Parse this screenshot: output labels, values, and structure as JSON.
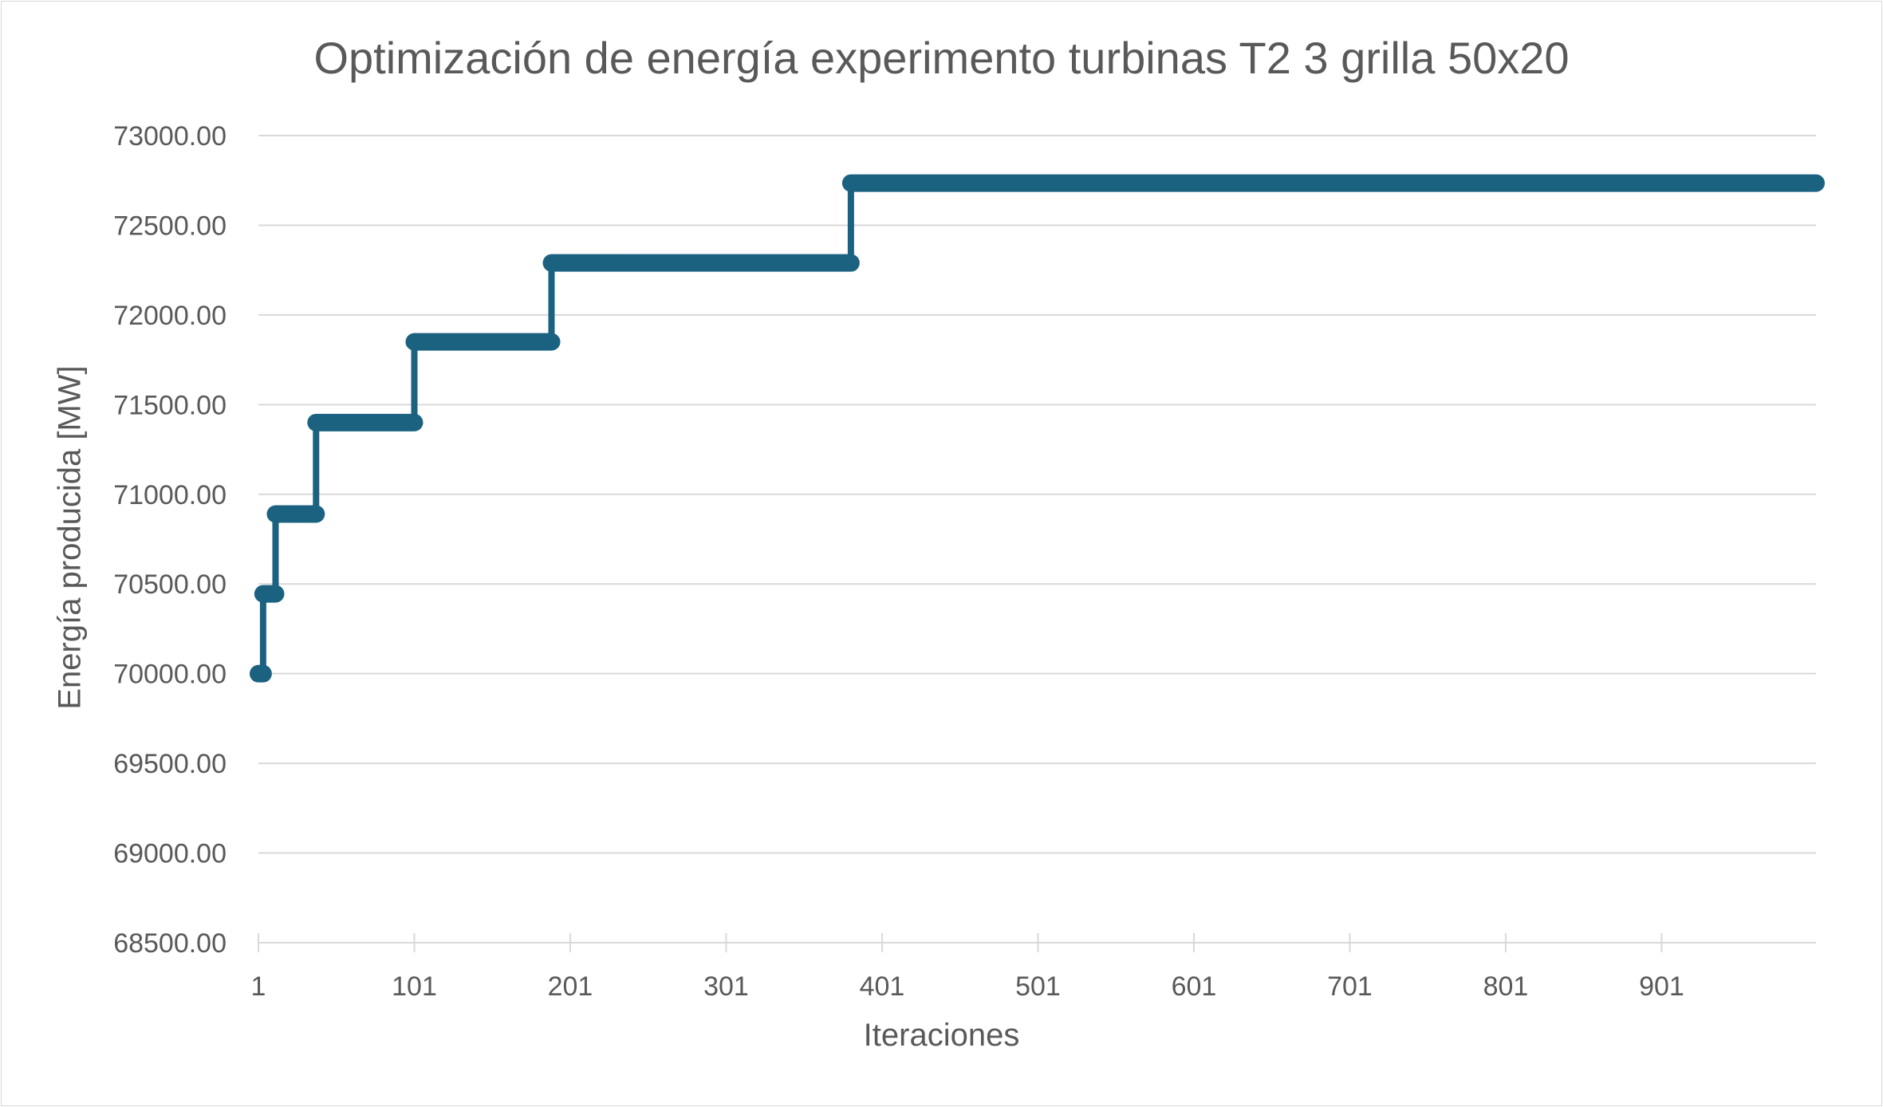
{
  "chart_data": {
    "type": "line",
    "title": "Optimización de energía experimento turbinas T2 3 grilla 50x20",
    "xlabel": "Iteraciones",
    "ylabel": "Energía producida [MW]",
    "ylim": [
      68500,
      73000
    ],
    "xlim": [
      1,
      1000
    ],
    "y_ticks": [
      "73000.00",
      "72500.00",
      "72000.00",
      "71500.00",
      "71000.00",
      "70500.00",
      "70000.00",
      "69500.00",
      "69000.00",
      "68500.00"
    ],
    "x_ticks": [
      "1",
      "101",
      "201",
      "301",
      "401",
      "501",
      "601",
      "701",
      "801",
      "901"
    ],
    "grid": "horizontal",
    "legend": "none",
    "colors": {
      "series": "#1b6281",
      "grid": "#d9d9d9",
      "text": "#595959"
    },
    "series": [
      {
        "points": [
          [
            1,
            70000
          ],
          [
            4,
            70000
          ],
          [
            4,
            70445
          ],
          [
            12,
            70445
          ],
          [
            12,
            70890
          ],
          [
            38,
            70890
          ],
          [
            38,
            71400
          ],
          [
            101,
            71400
          ],
          [
            101,
            71850
          ],
          [
            189,
            71850
          ],
          [
            189,
            72290
          ],
          [
            381,
            72290
          ],
          [
            381,
            72735
          ],
          [
            1000,
            72735
          ]
        ]
      }
    ]
  }
}
